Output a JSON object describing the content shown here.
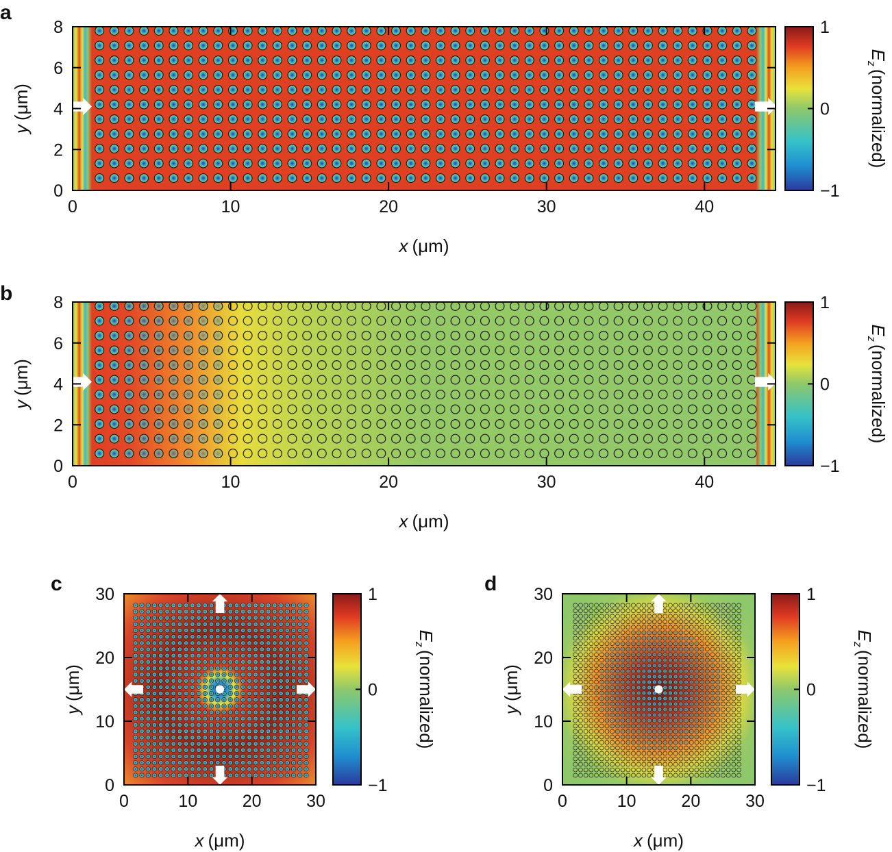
{
  "chart_data": [
    {
      "panel": "a",
      "type": "heatmap",
      "title": "",
      "xlabel_var": "x",
      "xlabel_unit": "(μm)",
      "ylabel_var": "y",
      "ylabel_unit": "(μm)",
      "xlim": [
        0,
        44.5
      ],
      "ylim": [
        0,
        8
      ],
      "xticks": [
        "0",
        "10",
        "20",
        "30",
        "40"
      ],
      "xtick_values": [
        0,
        10,
        20,
        30,
        40
      ],
      "yticks": [
        "0",
        "2",
        "4",
        "6",
        "8"
      ],
      "ytick_values": [
        0,
        2,
        4,
        6,
        8
      ],
      "lattice": {
        "x_start": 1.7,
        "x_end": 43.0,
        "y_start": 0.6,
        "y_end": 7.8,
        "columns": 45,
        "rows": 11
      },
      "field_description": "uniform strong oscillation (|Ez| near 1) across entire lattice",
      "decay_length_um": 0,
      "colorbar": {
        "label_var": "E",
        "label_sub": "z",
        "label_rest": "(normalized)",
        "ticks": [
          "1",
          "0",
          "−1"
        ],
        "range": [
          -1,
          1
        ]
      },
      "arrows": [
        "input-left",
        "output-right"
      ]
    },
    {
      "panel": "b",
      "type": "heatmap",
      "title": "",
      "xlabel_var": "x",
      "xlabel_unit": "(μm)",
      "ylabel_var": "y",
      "ylabel_unit": "(μm)",
      "xlim": [
        0,
        44.5
      ],
      "ylim": [
        0,
        8
      ],
      "xticks": [
        "0",
        "10",
        "20",
        "30",
        "40"
      ],
      "xtick_values": [
        0,
        10,
        20,
        30,
        40
      ],
      "yticks": [
        "0",
        "2",
        "4",
        "6",
        "8"
      ],
      "ytick_values": [
        0,
        2,
        4,
        6,
        8
      ],
      "lattice": {
        "x_start": 1.7,
        "x_end": 43.0,
        "y_start": 0.6,
        "y_end": 7.8,
        "columns": 45,
        "rows": 11
      },
      "field_description": "field amplitude decays from left (near 1) to nearly 0 beyond x≈15 μm",
      "decay_length_um": 6,
      "colorbar": {
        "label_var": "E",
        "label_sub": "z",
        "label_rest": "(normalized)",
        "ticks": [
          "1",
          "0",
          "−1"
        ],
        "range": [
          -1,
          1
        ]
      },
      "arrows": [
        "input-left",
        "output-right"
      ]
    },
    {
      "panel": "c",
      "type": "heatmap",
      "title": "",
      "xlabel_var": "x",
      "xlabel_unit": "(μm)",
      "ylabel_var": "y",
      "ylabel_unit": "(μm)",
      "xlim": [
        0,
        30
      ],
      "ylim": [
        0,
        30
      ],
      "xticks": [
        "0",
        "10",
        "20",
        "30"
      ],
      "xtick_values": [
        0,
        10,
        20,
        30
      ],
      "yticks": [
        "0",
        "10",
        "20",
        "30"
      ],
      "ytick_values": [
        0,
        10,
        20,
        30
      ],
      "source_point": [
        15,
        15
      ],
      "lattice": {
        "x_start": 1.8,
        "x_end": 28.5,
        "y_start": 1.5,
        "y_end": 28.2,
        "columns": 28,
        "rows": 28
      },
      "field_description": "strong field filling lattice, negative core around central source",
      "colorbar": {
        "label_var": "E",
        "label_sub": "z",
        "label_rest": "(normalized)",
        "ticks": [
          "1",
          "0",
          "−1"
        ],
        "range": [
          -1,
          1
        ]
      },
      "arrows": [
        "up",
        "down",
        "left",
        "right"
      ]
    },
    {
      "panel": "d",
      "type": "heatmap",
      "title": "",
      "xlabel_var": "x",
      "xlabel_unit": "(μm)",
      "ylabel_var": "y",
      "ylabel_unit": "(μm)",
      "xlim": [
        0,
        30
      ],
      "ylim": [
        0,
        30
      ],
      "xticks": [
        "0",
        "10",
        "20",
        "30"
      ],
      "xtick_values": [
        0,
        10,
        20,
        30
      ],
      "yticks": [
        "0",
        "10",
        "20",
        "30"
      ],
      "ytick_values": [
        0,
        10,
        20,
        30
      ],
      "source_point": [
        15,
        15
      ],
      "lattice": {
        "x_start": 2.0,
        "x_end": 27.5,
        "y_start": 1.5,
        "y_end": 28.2,
        "columns": 32,
        "rows": 32
      },
      "field_description": "field localized around central source, decaying to 0 near edges",
      "colorbar": {
        "label_var": "E",
        "label_sub": "z",
        "label_rest": "(normalized)",
        "ticks": [
          "1",
          "0",
          "−1"
        ],
        "range": [
          -1,
          1
        ]
      },
      "arrows": [
        "up",
        "down",
        "left",
        "right"
      ]
    }
  ],
  "panel_letters": [
    "a",
    "b",
    "c",
    "d"
  ]
}
